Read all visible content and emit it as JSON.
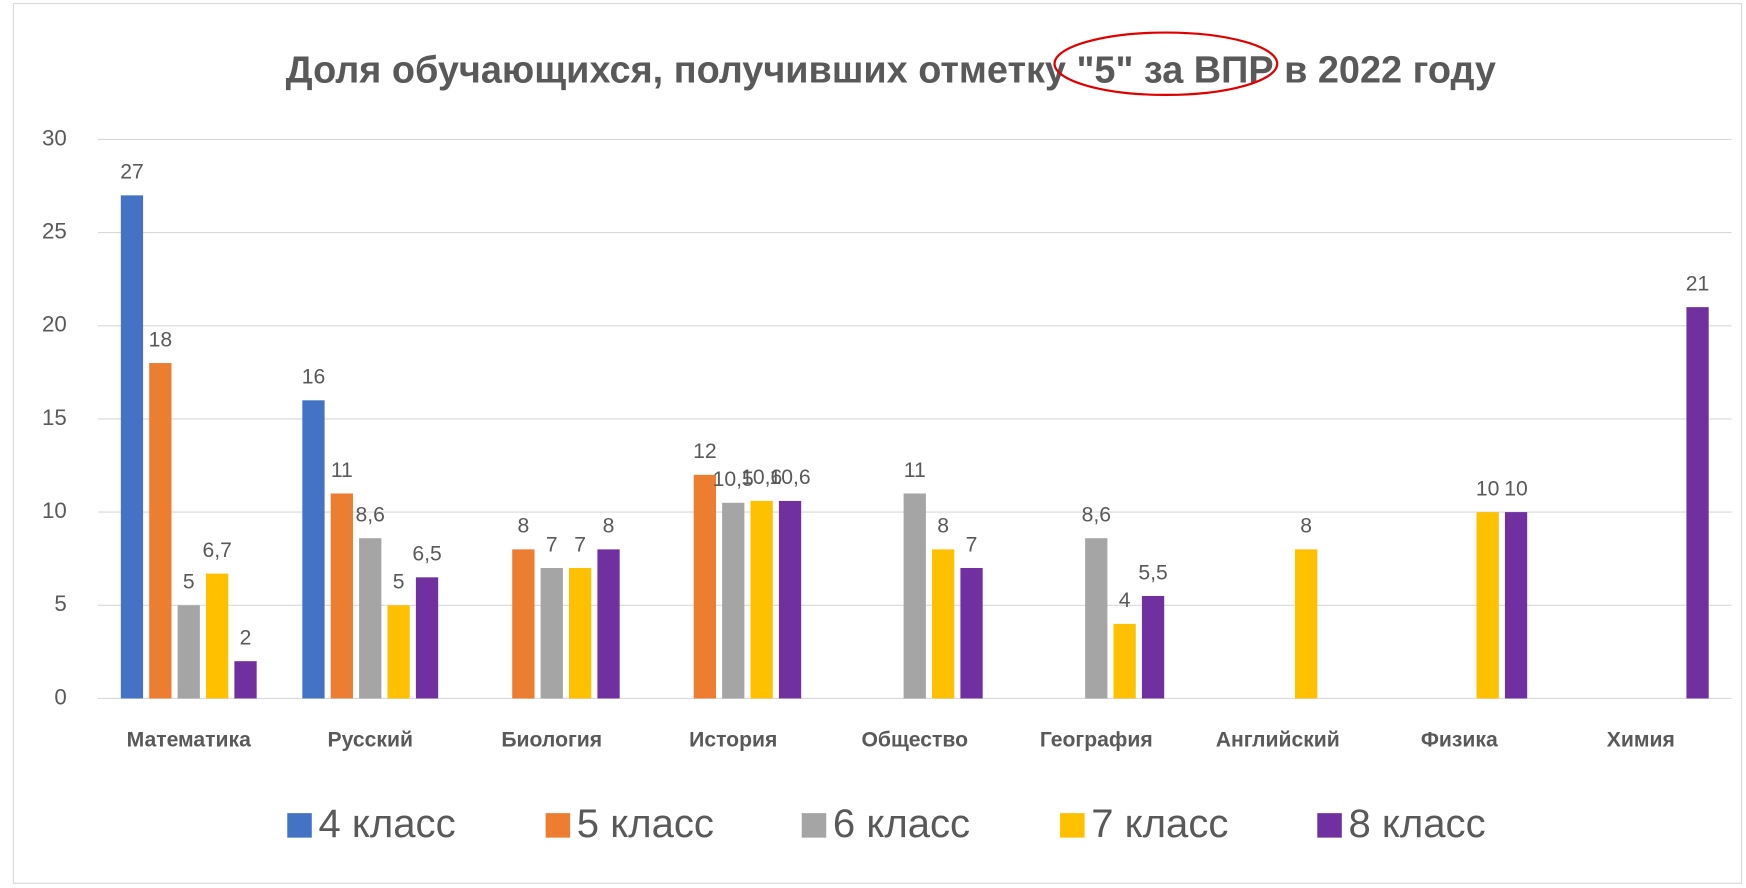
{
  "chart_data": {
    "type": "bar",
    "title": "Доля обучающихся, получивших отметку \"5\" за ВПР в 2022 году",
    "categories": [
      "Математика",
      "Русский",
      "Биология",
      "История",
      "Общество",
      "География",
      "Английский",
      "Физика",
      "Химия"
    ],
    "series": [
      {
        "name": "4 класс",
        "color": "#4472c4",
        "values": [
          27,
          16,
          null,
          null,
          null,
          null,
          null,
          null,
          null
        ],
        "value_labels": [
          "27",
          "16",
          null,
          null,
          null,
          null,
          null,
          null,
          null
        ]
      },
      {
        "name": "5 класс",
        "color": "#ed7d31",
        "values": [
          18,
          11,
          8,
          12,
          null,
          null,
          null,
          null,
          null
        ],
        "value_labels": [
          "18",
          "11",
          "8",
          "12",
          null,
          null,
          null,
          null,
          null
        ]
      },
      {
        "name": "6 класс",
        "color": "#a5a5a5",
        "values": [
          5,
          8.6,
          7,
          10.5,
          11,
          8.6,
          null,
          null,
          null
        ],
        "value_labels": [
          "5",
          "8,6",
          "7",
          "10,5",
          "11",
          "8,6",
          null,
          null,
          null
        ]
      },
      {
        "name": "7 класс",
        "color": "#ffc000",
        "values": [
          6.7,
          5,
          7,
          10.6,
          8,
          4,
          8,
          10,
          null
        ],
        "value_labels": [
          "6,7",
          "5",
          "7",
          "10,6",
          "8",
          "4",
          "8",
          "10",
          null
        ]
      },
      {
        "name": "8 класс",
        "color": "#7030a0",
        "values": [
          2,
          6.5,
          8,
          10.6,
          7,
          5.5,
          null,
          10,
          21
        ],
        "value_labels": [
          "2",
          "6,5",
          "8",
          "10,6",
          "7",
          "5,5",
          null,
          "10",
          "21"
        ]
      }
    ],
    "ylim": [
      0,
      30
    ],
    "yticks": [
      0,
      5,
      10,
      15,
      20,
      25,
      30
    ],
    "grid": true,
    "legend": "bottom"
  }
}
